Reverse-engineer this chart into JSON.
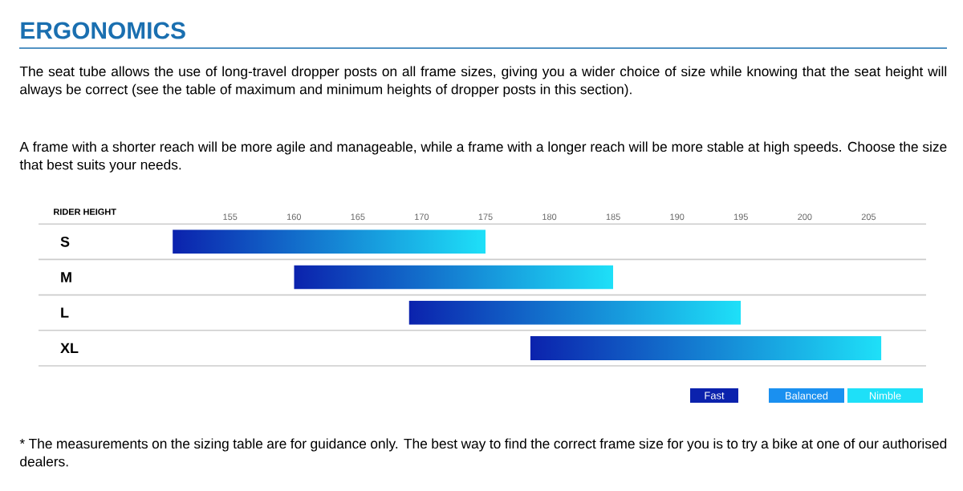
{
  "chart_data": {
    "type": "bar",
    "orientation": "horizontal",
    "title": "ERGONOMICS",
    "subtitle": "The seat tube allows the use of long-travel dropper posts on all frame sizes, giving you a wider choice of size while knowing that the seat height will always be correct (see the table of maximum and minimum heights of dropper posts in this section).",
    "annotations": [
      "A frame with a shorter reach will be more agile and manageable, while a frame with a longer reach will be more stable at high speeds. Choose the size that best suits your needs.",
      "* The measurements on the sizing table are for guidance only. The best way to find the correct frame size for you is to try a bike at one of our authorised dealers.",
      "Fast",
      "Balanced",
      "Nimble"
    ],
    "xlabel": "RIDER HEIGHT",
    "categories": [
      "S",
      "M",
      "L",
      "XL"
    ],
    "base": [
      150.5,
      160,
      169,
      178.5
    ],
    "values": [
      24.5,
      25,
      26,
      27.5
    ],
    "colors": [
      "#0b22ad",
      "#0b22ad",
      "#0b22ad",
      "#0b22ad"
    ],
    "xlim": [
      140,
      209.5
    ],
    "xticks": [
      155,
      160,
      165,
      170,
      175,
      180,
      185,
      190,
      195,
      200,
      205
    ],
    "grid": "y"
  }
}
